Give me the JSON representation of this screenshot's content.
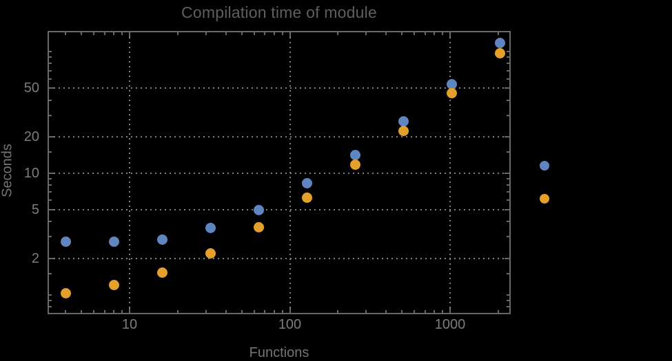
{
  "chart_data": {
    "type": "scatter",
    "title": "Compilation time of module",
    "xlabel": "Functions",
    "ylabel": "Seconds",
    "x_scale": "log",
    "y_scale": "log",
    "x": [
      4,
      8,
      16,
      32,
      64,
      128,
      256,
      512,
      1024,
      2048
    ],
    "series": [
      {
        "name": "series-1-blue",
        "color": "#5f86c0",
        "values": [
          2.74,
          2.72,
          2.86,
          3.53,
          5.0,
          8.3,
          14.1,
          26.9,
          54.2,
          118
        ]
      },
      {
        "name": "series-2-orange",
        "color": "#e3a02a",
        "values": [
          1.03,
          1.2,
          1.53,
          2.18,
          3.6,
          6.26,
          11.7,
          22.3,
          45.5,
          96.9
        ]
      }
    ],
    "x_ticks": [
      {
        "value": 10,
        "label": "10"
      },
      {
        "value": 100,
        "label": "100"
      },
      {
        "value": 1000,
        "label": "1000"
      }
    ],
    "y_ticks": [
      {
        "value": 2,
        "label": "2"
      },
      {
        "value": 5,
        "label": "5"
      },
      {
        "value": 10,
        "label": "10"
      },
      {
        "value": 20,
        "label": "20"
      },
      {
        "value": 50,
        "label": "50"
      }
    ],
    "x_minor_ticks": [
      4,
      5,
      6,
      7,
      8,
      9,
      20,
      30,
      40,
      50,
      60,
      70,
      80,
      90,
      200,
      300,
      400,
      500,
      600,
      700,
      800,
      900,
      2000
    ],
    "y_minor_ticks": [
      0.8,
      0.9,
      1,
      1.5,
      3,
      4,
      6,
      7,
      8,
      9,
      15,
      30,
      40,
      60,
      70,
      80,
      90,
      100
    ],
    "x_range": [
      3.08,
      2370
    ],
    "y_range": [
      0.69,
      148
    ],
    "grid": {
      "style": "dotted",
      "color": "#828282"
    },
    "legend": {
      "position": "right",
      "items": [
        {
          "label": "",
          "color": "#5f86c0"
        },
        {
          "label": "",
          "color": "#e3a02a"
        }
      ]
    }
  },
  "colors": {
    "background": "#000000",
    "frame": "#696969",
    "title_text": "#5f5f5f",
    "tick_label_text": "#7d7d7d",
    "axis_label_text": "#757575"
  }
}
